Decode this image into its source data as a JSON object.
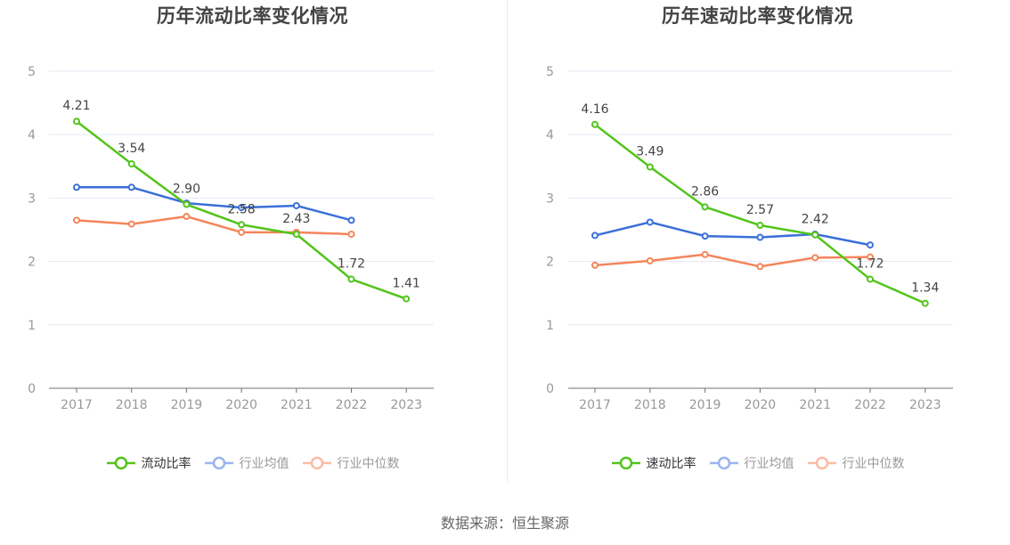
{
  "chart_data": [
    {
      "type": "line",
      "title": "历年流动比率变化情况",
      "xlabel": "",
      "ylabel": "",
      "categories": [
        "2017",
        "2018",
        "2019",
        "2020",
        "2021",
        "2022",
        "2023"
      ],
      "ylim": [
        0,
        5
      ],
      "yticks": [
        "0",
        "1",
        "2",
        "3",
        "4",
        "5"
      ],
      "grid": true,
      "legend_position": "bottom",
      "series": [
        {
          "name": "流动比率",
          "color": "#52c41a",
          "values": [
            4.21,
            3.54,
            2.9,
            2.58,
            2.43,
            1.72,
            1.41
          ],
          "labels": [
            "4.21",
            "3.54",
            "2.90",
            "2.58",
            "2.43",
            "1.72",
            "1.41"
          ],
          "active": true
        },
        {
          "name": "行业均值",
          "color": "#3a6fd8",
          "values": [
            3.17,
            3.17,
            2.92,
            2.85,
            2.88,
            2.65,
            null
          ],
          "active": false
        },
        {
          "name": "行业中位数",
          "color": "#f5855a",
          "values": [
            2.65,
            2.59,
            2.71,
            2.46,
            2.46,
            2.43,
            null
          ],
          "active": false
        }
      ]
    },
    {
      "type": "line",
      "title": "历年速动比率变化情况",
      "xlabel": "",
      "ylabel": "",
      "categories": [
        "2017",
        "2018",
        "2019",
        "2020",
        "2021",
        "2022",
        "2023"
      ],
      "ylim": [
        0,
        5
      ],
      "yticks": [
        "0",
        "1",
        "2",
        "3",
        "4",
        "5"
      ],
      "grid": true,
      "legend_position": "bottom",
      "series": [
        {
          "name": "速动比率",
          "color": "#52c41a",
          "values": [
            4.16,
            3.49,
            2.86,
            2.57,
            2.42,
            1.72,
            1.34
          ],
          "labels": [
            "4.16",
            "3.49",
            "2.86",
            "2.57",
            "2.42",
            "1.72",
            "1.34"
          ],
          "active": true
        },
        {
          "name": "行业均值",
          "color": "#3a6fd8",
          "values": [
            2.41,
            2.62,
            2.4,
            2.38,
            2.43,
            2.26,
            null
          ],
          "active": false
        },
        {
          "name": "行业中位数",
          "color": "#f5855a",
          "values": [
            1.94,
            2.01,
            2.11,
            1.92,
            2.06,
            2.07,
            null
          ],
          "active": false
        }
      ]
    }
  ],
  "legend_colors_inactive": {
    "行业均值": "#99b4ef",
    "行业中位数": "#f9bca4"
  },
  "footer": {
    "source": "数据来源：恒生聚源"
  }
}
